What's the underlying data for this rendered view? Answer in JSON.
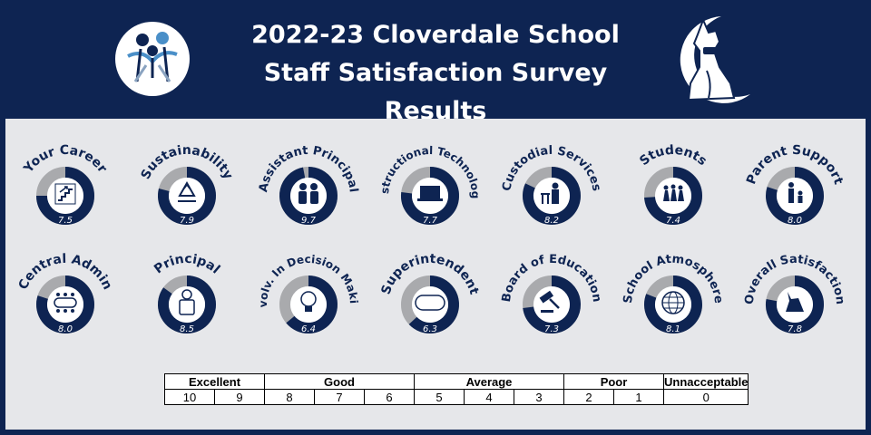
{
  "header": {
    "title_line1": "2022-23 Cloverdale School",
    "title_line2": "Staff Satisfaction Survey Results"
  },
  "colors": {
    "navy": "#0e2452",
    "gray": "#a9aaad",
    "panel": "#e6e7ea"
  },
  "max_score": 10,
  "categories": [
    {
      "label": "Your Career",
      "score": "7.5",
      "value": 7.5,
      "icon": "stairs-icon"
    },
    {
      "label": "Sustainability",
      "score": "7.9",
      "value": 7.9,
      "icon": "recycle-icon"
    },
    {
      "label": "Assistant Principal",
      "score": "9.7",
      "value": 9.7,
      "icon": "two-people-icon"
    },
    {
      "label": "Instructional Technology",
      "score": "7.7",
      "value": 7.7,
      "icon": "laptop-icon"
    },
    {
      "label": "Custodial Services",
      "score": "8.2",
      "value": 8.2,
      "icon": "custodian-icon"
    },
    {
      "label": "Students",
      "score": "7.4",
      "value": 7.4,
      "icon": "students-icon"
    },
    {
      "label": "Parent Support",
      "score": "8.0",
      "value": 8.0,
      "icon": "parent-child-icon"
    },
    {
      "label": "Central Admin",
      "score": "8.0",
      "value": 8.0,
      "icon": "conference-table-icon"
    },
    {
      "label": "Principal",
      "score": "8.5",
      "value": 8.5,
      "icon": "person-icon"
    },
    {
      "label": "Involv. In Decision Making",
      "score": "6.4",
      "value": 6.4,
      "icon": "lightbulb-icon"
    },
    {
      "label": "Superintendent",
      "score": "6.3",
      "value": 6.3,
      "icon": "bus-icon"
    },
    {
      "label": "Board of Education",
      "score": "7.3",
      "value": 7.3,
      "icon": "gavel-icon"
    },
    {
      "label": "School Atmosphere",
      "score": "8.1",
      "value": 8.1,
      "icon": "globe-icon"
    },
    {
      "label": "Overall Satisfaction",
      "score": "7.8",
      "value": 7.8,
      "icon": "wolf-mascot-icon"
    }
  ],
  "scale": {
    "groups": [
      "Excellent",
      "Good",
      "Average",
      "Poor",
      "Unnacceptable"
    ],
    "numbers": [
      "10",
      "9",
      "8",
      "7",
      "6",
      "5",
      "4",
      "3",
      "2",
      "1",
      "0"
    ]
  }
}
